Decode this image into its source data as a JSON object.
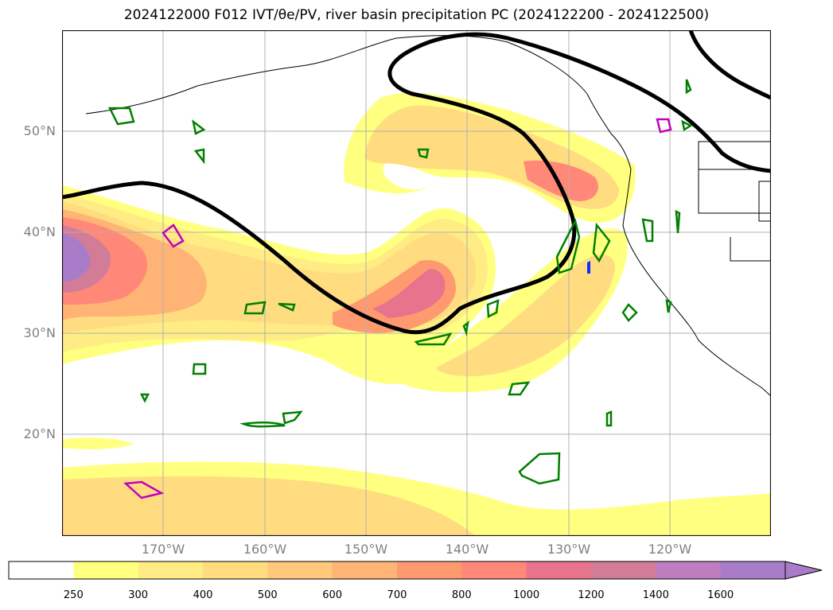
{
  "title": "2024122000 F012 IVT/θe/PV, river basin precipitation PC (2024122200 - 2024122500)",
  "map": {
    "lat_labels": [
      "50°N",
      "40°N",
      "30°N",
      "20°N"
    ],
    "lon_labels": [
      "170°W",
      "160°W",
      "150°W",
      "140°W",
      "130°W",
      "120°W"
    ],
    "colors": {
      "frame": "#1a0a1a",
      "grid": "#b0b0b0",
      "jet": "#000000",
      "green_contour": "#008000",
      "magenta_contour": "#c000c0",
      "blue_mark": "#1030ff"
    }
  },
  "colorbar": {
    "levels": [
      "250",
      "300",
      "400",
      "500",
      "600",
      "700",
      "800",
      "1000",
      "1200",
      "1400",
      "1600"
    ],
    "colors": [
      "#ffffff",
      "#ffff80",
      "#ffec84",
      "#ffdc80",
      "#ffc87a",
      "#ffb374",
      "#ff9a70",
      "#ff8878",
      "#e8738c",
      "#d27c98",
      "#bf7cc0",
      "#a87cc8"
    ]
  }
}
